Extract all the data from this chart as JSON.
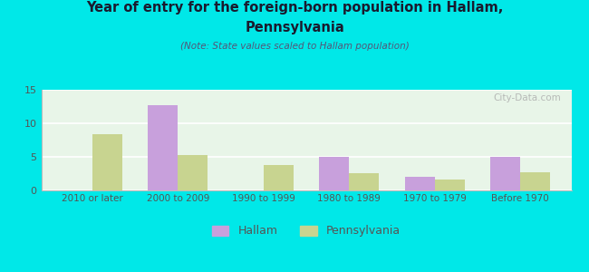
{
  "title_line1": "Year of entry for the foreign-born population in Hallam,",
  "title_line2": "Pennsylvania",
  "subtitle": "(Note: State values scaled to Hallam population)",
  "categories": [
    "2010 or later",
    "2000 to 2009",
    "1990 to 1999",
    "1980 to 1989",
    "1970 to 1979",
    "Before 1970"
  ],
  "hallam_values": [
    0,
    12.7,
    0,
    5.0,
    2.0,
    5.0
  ],
  "pennsylvania_values": [
    8.4,
    5.3,
    3.8,
    2.6,
    1.6,
    2.7
  ],
  "hallam_color": "#c8a0dc",
  "pennsylvania_color": "#c8d490",
  "background_color": "#00e8e8",
  "plot_bg_color": "#e8f5e8",
  "ylim": [
    0,
    15
  ],
  "yticks": [
    0,
    5,
    10,
    15
  ],
  "bar_width": 0.35,
  "watermark": "City-Data.com",
  "legend_hallam": "Hallam",
  "legend_pennsylvania": "Pennsylvania",
  "title_color": "#1a1a2e",
  "subtitle_color": "#555577",
  "tick_color": "#555555"
}
